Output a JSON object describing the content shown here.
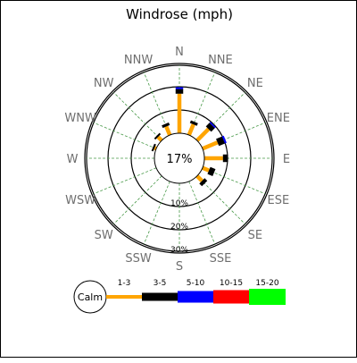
{
  "chart_data": {
    "type": "windrose",
    "title": "Windrose (mph)",
    "directions": [
      "N",
      "NNE",
      "NE",
      "ENE",
      "E",
      "ESE",
      "SE",
      "SSE",
      "S",
      "SSW",
      "SW",
      "WSW",
      "W",
      "WNW",
      "NW",
      "NNW"
    ],
    "calm_percent_label": "17%",
    "ring_labels": [
      "10%",
      "20%",
      "30%"
    ],
    "ring_values": [
      10,
      20,
      30
    ],
    "speed_bins": [
      {
        "label": "1-3",
        "color": "#ffa500"
      },
      {
        "label": "3-5",
        "color": "#000000"
      },
      {
        "label": "5-10",
        "color": "#0000ff"
      },
      {
        "label": "10-15",
        "color": "#ff0000"
      },
      {
        "label": "15-20",
        "color": "#00ff00"
      }
    ],
    "calm_label": "Calm",
    "grid": true,
    "series": [
      {
        "direction": "N",
        "values": [
          17,
          2,
          0.8,
          0,
          0
        ]
      },
      {
        "direction": "NNE",
        "values": [
          5,
          1.2,
          0,
          0,
          0
        ]
      },
      {
        "direction": "NE",
        "values": [
          7,
          2.2,
          0.6,
          0,
          0
        ]
      },
      {
        "direction": "ENE",
        "values": [
          7,
          2.8,
          0.8,
          0,
          0
        ]
      },
      {
        "direction": "E",
        "values": [
          8,
          2.2,
          0,
          0,
          0
        ]
      },
      {
        "direction": "ESE",
        "values": [
          3,
          2.4,
          0,
          0,
          0
        ]
      },
      {
        "direction": "SE",
        "values": [
          3,
          1.6,
          0,
          0,
          0
        ]
      },
      {
        "direction": "SSE",
        "values": [
          0,
          0,
          0,
          0,
          0
        ]
      },
      {
        "direction": "S",
        "values": [
          0,
          0,
          0,
          0,
          0
        ]
      },
      {
        "direction": "SSW",
        "values": [
          0,
          0,
          0,
          0,
          0
        ]
      },
      {
        "direction": "SW",
        "values": [
          0,
          0,
          0,
          0,
          0
        ]
      },
      {
        "direction": "WSW",
        "values": [
          0,
          0,
          0,
          0,
          0
        ]
      },
      {
        "direction": "W",
        "values": [
          0,
          0,
          0,
          0,
          0
        ]
      },
      {
        "direction": "WNW",
        "values": [
          0.8,
          0.8,
          0,
          0,
          0
        ]
      },
      {
        "direction": "NW",
        "values": [
          2.2,
          0.8,
          0,
          0,
          0
        ]
      },
      {
        "direction": "NNW",
        "values": [
          4,
          1.2,
          0,
          0,
          0
        ]
      }
    ]
  }
}
